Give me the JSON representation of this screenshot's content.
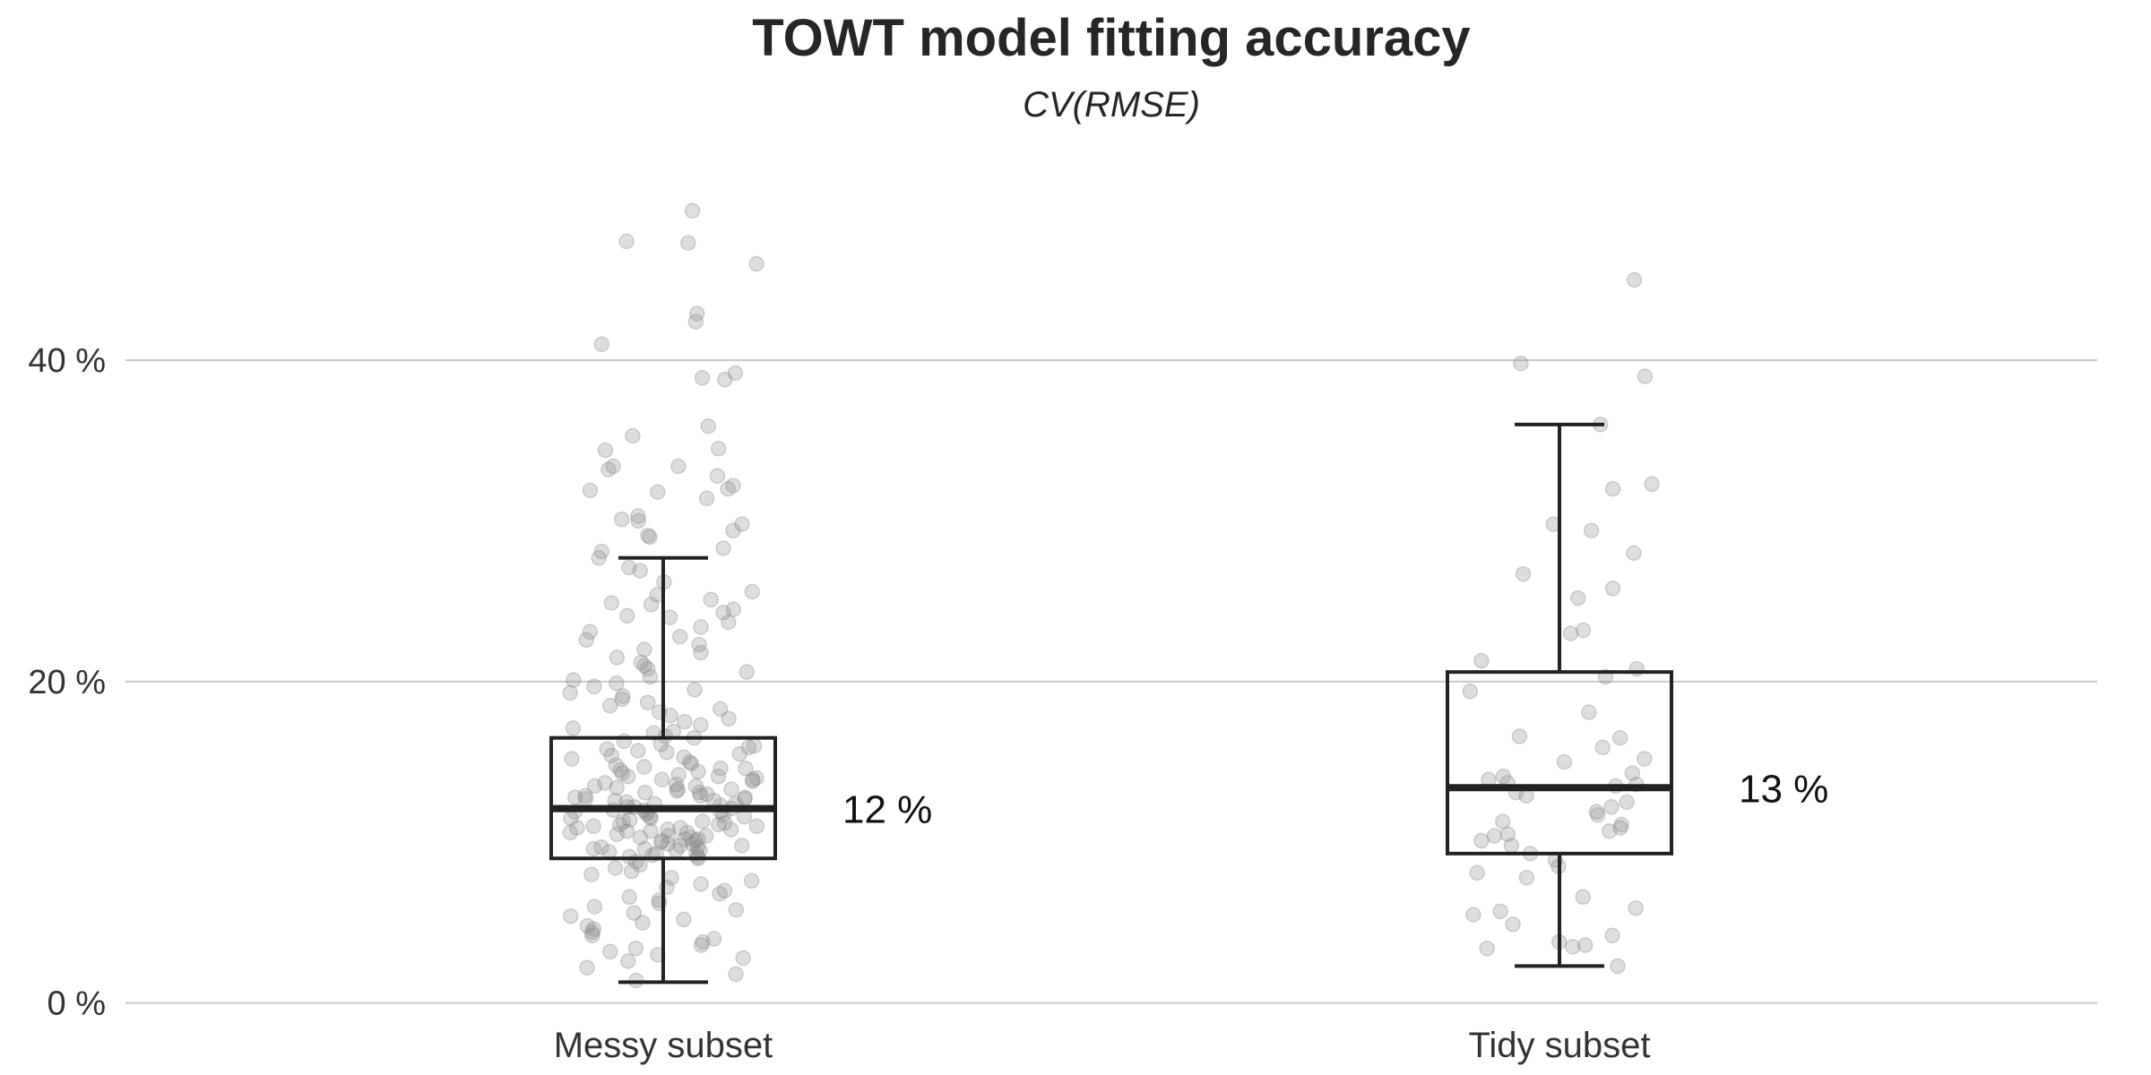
{
  "chart_data": {
    "type": "box",
    "title": "TOWT model fitting accuracy",
    "subtitle": "CV(RMSE)",
    "xlabel": "",
    "ylabel": "",
    "ylim": [
      -0.8,
      53.5
    ],
    "yticks": [
      {
        "value": 0,
        "label": "0 %"
      },
      {
        "value": 20,
        "label": "20 %"
      },
      {
        "value": 40,
        "label": "40 %"
      }
    ],
    "grid": "horizontal",
    "categories": [
      "Messy subset",
      "Tidy subset"
    ],
    "boxes": [
      {
        "category": "Messy subset",
        "whisker_low": 1.3,
        "q1": 9.0,
        "median": 12.1,
        "q3": 16.5,
        "whisker_high": 27.7,
        "median_label": "12 %",
        "points": [
          49.3,
          47.4,
          47.3,
          46.0,
          42.9,
          42.4,
          41.0,
          39.2,
          38.9,
          38.8,
          35.9,
          35.3,
          34.5,
          34.4,
          33.4,
          33.4,
          33.2,
          32.8,
          32.2,
          32.0,
          31.9,
          31.8,
          31.4,
          30.3,
          30.1,
          30.0,
          29.8,
          29.4,
          29.1,
          29.0,
          28.3,
          28.1,
          27.7,
          27.1,
          26.9,
          26.2,
          25.6,
          25.4,
          25.1,
          24.9,
          24.8,
          24.5,
          24.3,
          24.1,
          24.0,
          23.7,
          23.4,
          23.1,
          22.8,
          22.6,
          22.3,
          22.0,
          21.8,
          21.5,
          21.2,
          21.0,
          20.8,
          20.6,
          20.3,
          20.1,
          19.9,
          19.7,
          19.5,
          19.3,
          19.1,
          18.9,
          18.7,
          18.5,
          18.3,
          18.1,
          17.9,
          17.7,
          17.5,
          17.3,
          17.1,
          16.9,
          16.8,
          16.6,
          16.5,
          16.3,
          16.1,
          15.9,
          15.8,
          15.6,
          15.5,
          15.3,
          15.2,
          15.0,
          14.9,
          14.7,
          14.6,
          14.4,
          14.3,
          14.1,
          14.0,
          13.9,
          13.7,
          13.6,
          13.5,
          13.3,
          13.2,
          13.1,
          12.9,
          12.8,
          12.7,
          12.6,
          12.4,
          12.3,
          12.2,
          12.1,
          12.0,
          11.9,
          11.8,
          11.6,
          11.5,
          11.4,
          11.3,
          11.2,
          11.1,
          11.0,
          10.9,
          10.8,
          10.7,
          10.6,
          10.5,
          10.4,
          10.3,
          10.2,
          10.1,
          10.0,
          9.9,
          9.8,
          9.7,
          9.6,
          9.5,
          9.4,
          9.3,
          9.2,
          9.1,
          9.0,
          8.8,
          8.6,
          8.4,
          8.2,
          8.0,
          7.8,
          7.6,
          7.4,
          7.2,
          7.0,
          6.8,
          6.6,
          6.4,
          6.2,
          6.0,
          5.8,
          5.6,
          5.4,
          5.2,
          5.0,
          4.8,
          4.6,
          4.4,
          4.2,
          4.0,
          3.8,
          3.6,
          3.4,
          3.2,
          3.0,
          2.8,
          2.6,
          2.2,
          1.8,
          1.4,
          16.0,
          15.4,
          14.8,
          14.2,
          13.8,
          13.4,
          13.0,
          12.5,
          11.7,
          11.3,
          10.8,
          10.4,
          9.9,
          9.5,
          9.1,
          14.5,
          13.5,
          12.6,
          11.9,
          11.0,
          10.1,
          9.3,
          15.7,
          12.9,
          10.6,
          13.3,
          12.2,
          11.5,
          10.7,
          9.8,
          14.1,
          12.7,
          11.6,
          10.2,
          9.6,
          12.4,
          11.1,
          10.9,
          13.1,
          12.0,
          14.6,
          13.9,
          12.8,
          11.8,
          10.3,
          9.7
        ],
        "points_note": "representative jittered observations"
      },
      {
        "category": "Tidy subset",
        "whisker_low": 2.3,
        "q1": 9.3,
        "median": 13.4,
        "q3": 20.6,
        "whisker_high": 36.0,
        "median_label": "13 %",
        "points": [
          45.0,
          39.8,
          39.0,
          36.0,
          32.3,
          32.0,
          29.8,
          29.4,
          28.0,
          26.7,
          25.8,
          25.2,
          23.2,
          23.0,
          21.3,
          20.8,
          20.3,
          19.4,
          18.1,
          16.6,
          16.5,
          15.9,
          15.2,
          15.0,
          14.3,
          14.1,
          13.9,
          13.7,
          13.6,
          13.5,
          13.1,
          12.9,
          12.5,
          12.2,
          11.9,
          11.7,
          11.3,
          11.1,
          10.9,
          10.7,
          10.5,
          10.4,
          10.1,
          9.8,
          9.3,
          8.9,
          8.5,
          8.1,
          7.8,
          6.6,
          5.9,
          5.7,
          5.5,
          4.9,
          4.2,
          3.8,
          3.6,
          3.5,
          3.4,
          2.3
        ]
      }
    ],
    "colors": {
      "box_stroke": "#222222",
      "median_line": "#222222",
      "points": "#888888",
      "gridline": "#c8c8c8",
      "tick_text": "#333333",
      "title_text": "#262626"
    }
  }
}
